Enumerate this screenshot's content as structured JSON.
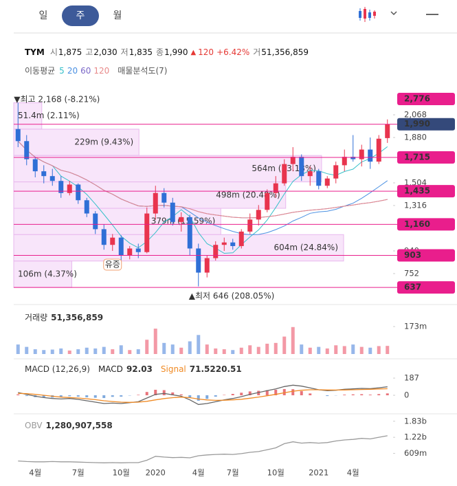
{
  "header": {
    "tabs": [
      "일",
      "주",
      "월"
    ],
    "selected": 1
  },
  "quote": {
    "name": "TYM",
    "fields": [
      {
        "label": "시",
        "value": "1,875"
      },
      {
        "label": "고",
        "value": "2,030"
      },
      {
        "label": "저",
        "value": "1,835"
      },
      {
        "label": "종",
        "value": "1,990"
      }
    ],
    "change_arrow": "▲",
    "change": "120",
    "change_pct": "+6.42%",
    "volume_label": "거",
    "volume": "51,356,859"
  },
  "indicators": {
    "ma_label": "이동평균",
    "profile_label": "매물분석도(7)"
  },
  "chart_data": [
    {
      "type": "candlestick",
      "categories": [
        null,
        null,
        "4월",
        null,
        null,
        null,
        null,
        "7월",
        null,
        null,
        null,
        null,
        "10월",
        null,
        null,
        null,
        "2020",
        null,
        null,
        null,
        null,
        "4월",
        null,
        null,
        null,
        "7월",
        null,
        null,
        null,
        null,
        "10월",
        null,
        null,
        null,
        null,
        "2021",
        null,
        null,
        null,
        "4월",
        null,
        null,
        null,
        null
      ],
      "open": [
        1950,
        1850,
        1700,
        1600,
        1560,
        1520,
        1420,
        1490,
        1360,
        1250,
        1120,
        990,
        1050,
        900,
        960,
        930,
        1250,
        1420,
        1340,
        1180,
        1220,
        960,
        760,
        880,
        990,
        1010,
        980,
        1100,
        1200,
        1280,
        1420,
        1500,
        1660,
        1720,
        1560,
        1600,
        1480,
        1540,
        1650,
        1720,
        1700,
        1780,
        1680,
        1875
      ],
      "high": [
        2168,
        1900,
        1720,
        1650,
        1620,
        1560,
        1520,
        1500,
        1380,
        1270,
        1160,
        1080,
        1070,
        980,
        1000,
        1300,
        1480,
        1460,
        1380,
        1260,
        1240,
        1000,
        900,
        1020,
        1050,
        1040,
        1120,
        1250,
        1320,
        1450,
        1560,
        1700,
        1800,
        1740,
        1640,
        1620,
        1560,
        1680,
        1780,
        1900,
        1820,
        1880,
        1900,
        2030
      ],
      "low": [
        1800,
        1650,
        1550,
        1500,
        1480,
        1380,
        1400,
        1330,
        1220,
        1080,
        950,
        940,
        860,
        870,
        880,
        920,
        1200,
        1300,
        1150,
        1100,
        900,
        646,
        720,
        860,
        940,
        950,
        960,
        1080,
        1150,
        1260,
        1380,
        1480,
        1600,
        1520,
        1480,
        1450,
        1460,
        1500,
        1600,
        1680,
        1640,
        1620,
        1660,
        1835
      ],
      "close": [
        1850,
        1700,
        1600,
        1560,
        1520,
        1420,
        1490,
        1360,
        1250,
        1120,
        990,
        1050,
        900,
        960,
        930,
        1250,
        1420,
        1340,
        1180,
        1220,
        960,
        760,
        880,
        990,
        1010,
        980,
        1100,
        1200,
        1280,
        1420,
        1500,
        1660,
        1720,
        1560,
        1600,
        1480,
        1540,
        1650,
        1720,
        1700,
        1780,
        1680,
        1870,
        1990
      ],
      "up_color": "#e8344e",
      "down_color": "#2f6fd6",
      "ylim": [
        598,
        2222
      ],
      "yticks": [
        {
          "value": 2068,
          "label": "2,068"
        },
        {
          "value": 1880,
          "label": "1,880"
        },
        {
          "value": 1504,
          "label": "1,504"
        },
        {
          "value": 1316,
          "label": "1,316"
        },
        940,
        752
      ],
      "ma": [
        {
          "period": 5,
          "color": "#35c0c9"
        },
        {
          "period": 20,
          "color": "#4a90e2"
        },
        {
          "period": 60,
          "color": "#7b68c8"
        },
        {
          "period": 120,
          "color": "#e88a8a"
        }
      ],
      "levels": {
        "values": [
          2776,
          1990,
          1715,
          1435,
          1160,
          903,
          637
        ],
        "value_labels": [
          "2,776",
          "1,990",
          "1,715",
          "1,435",
          "1,160",
          "903",
          "637"
        ],
        "current": 1,
        "color": "#e91e8c",
        "current_color": "#34497a"
      },
      "profile": {
        "bounds": [
          2168,
          1949,
          1731,
          1512,
          1293,
          1075,
          856,
          637
        ],
        "values": [
          2.11,
          9.43,
          23.18,
          20.48,
          15.59,
          24.84,
          4.37
        ],
        "value_labels": [
          "51.4m (2.11%)",
          "229m (9.43%)",
          "564m (23.18%)",
          "498m (20.48%)",
          "379m (15.59%)",
          "604m (24.84%)",
          "106m (4.37%)"
        ],
        "color": "#f6dcf8",
        "border": "#e8b8ee"
      },
      "annotations": {
        "high": "▼최고 2,168 (-8.21%)",
        "low": "▲최저 646 (208.05%)",
        "rights": {
          "text": "유증",
          "index": 11
        }
      }
    },
    {
      "type": "bar",
      "title": "거래량",
      "value_label": "51,356,859",
      "values": [
        60,
        45,
        30,
        25,
        28,
        35,
        22,
        30,
        40,
        35,
        45,
        30,
        55,
        25,
        30,
        90,
        160,
        70,
        60,
        40,
        80,
        120,
        60,
        35,
        30,
        25,
        40,
        55,
        45,
        65,
        70,
        110,
        170,
        60,
        40,
        45,
        35,
        55,
        50,
        60,
        45,
        40,
        50,
        51.36
      ],
      "ylim": [
        0,
        260
      ],
      "yticks": [
        {
          "value": 173,
          "label": "173m"
        }
      ]
    },
    {
      "type": "line",
      "title": "MACD (12,26,9)",
      "histogram": true,
      "histogram_colors": [
        "#e8737a",
        "#7ea9dd"
      ],
      "series": [
        {
          "name": "MACD",
          "color": "#666666",
          "value_label": "92.03",
          "values": [
            30,
            10,
            -10,
            -25,
            -35,
            -40,
            -35,
            -45,
            -60,
            -75,
            -90,
            -85,
            -90,
            -80,
            -70,
            -30,
            10,
            20,
            5,
            -10,
            -50,
            -100,
            -90,
            -70,
            -50,
            -35,
            -15,
            10,
            30,
            50,
            70,
            95,
            110,
            100,
            80,
            60,
            50,
            55,
            65,
            70,
            75,
            72,
            82,
            92.03
          ]
        },
        {
          "name": "Signal",
          "color": "#f08a24",
          "value_label": "71.5220.51",
          "values": [
            20,
            18,
            10,
            0,
            -10,
            -20,
            -25,
            -30,
            -38,
            -48,
            -60,
            -68,
            -75,
            -77,
            -75,
            -66,
            -50,
            -36,
            -26,
            -20,
            -26,
            -41,
            -51,
            -55,
            -54,
            -50,
            -43,
            -32,
            -19,
            -5,
            10,
            27,
            44,
            55,
            60,
            60,
            58,
            57,
            58,
            60,
            63,
            65,
            69,
            71.52
          ]
        }
      ],
      "ylim": [
        -172,
        337
      ],
      "yticks": [
        187,
        0
      ]
    },
    {
      "type": "line",
      "series": [
        {
          "name": "OBV",
          "color": "#9a9a9a",
          "value_label": "1,280,907,558",
          "values": [
            0.32,
            0.3,
            0.29,
            0.29,
            0.3,
            0.29,
            0.29,
            0.28,
            0.27,
            0.26,
            0.25,
            0.26,
            0.25,
            0.26,
            0.26,
            0.35,
            0.5,
            0.47,
            0.45,
            0.46,
            0.44,
            0.52,
            0.55,
            0.57,
            0.58,
            0.57,
            0.6,
            0.65,
            0.68,
            0.75,
            0.82,
            0.98,
            1.05,
            1.0,
            1.02,
            1.0,
            1.02,
            1.08,
            1.12,
            1.14,
            1.18,
            1.16,
            1.22,
            1.28
          ]
        }
      ],
      "ylim": [
        0.05,
        1.85
      ],
      "yticks": [
        {
          "value": 1.83,
          "label": "1.83b"
        },
        {
          "value": 1.22,
          "label": "1.22b"
        },
        {
          "value": 0.609,
          "label": "609m"
        }
      ]
    }
  ]
}
